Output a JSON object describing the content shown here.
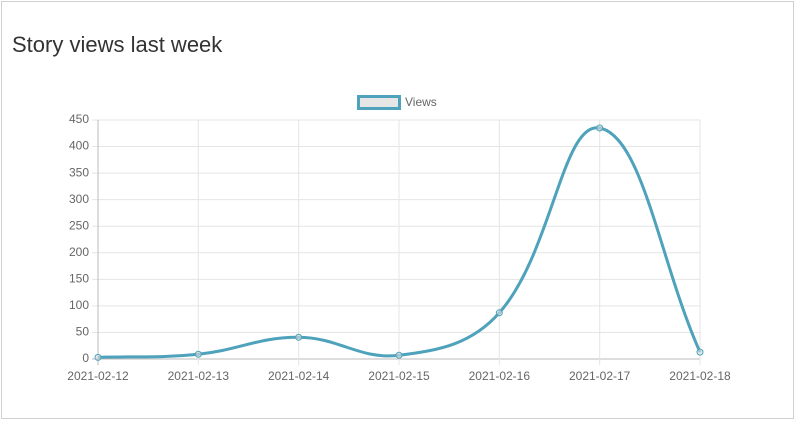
{
  "chart_data": {
    "type": "line",
    "title": "Story views last week",
    "categories": [
      "2021-02-12",
      "2021-02-13",
      "2021-02-14",
      "2021-02-15",
      "2021-02-16",
      "2021-02-17",
      "2021-02-18"
    ],
    "series": [
      {
        "name": "Views",
        "color": "#4ea2bb",
        "values": [
          3,
          9,
          41,
          7,
          87,
          435,
          13
        ]
      }
    ],
    "ylim": [
      0,
      450
    ],
    "yticks": [
      0,
      50,
      100,
      150,
      200,
      250,
      300,
      350,
      400,
      450
    ],
    "grid": true,
    "legend": "top"
  }
}
